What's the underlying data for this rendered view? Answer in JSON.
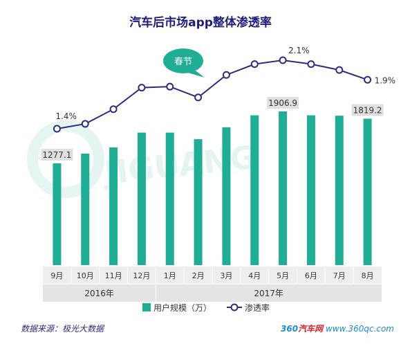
{
  "title": "汽车后市场app整体渗透率",
  "chart_data": {
    "type": "bar+line",
    "categories": [
      "9月",
      "10月",
      "11月",
      "12月",
      "1月",
      "2月",
      "3月",
      "4月",
      "5月",
      "6月",
      "7月",
      "8月"
    ],
    "year_groups": [
      {
        "label": "2016年",
        "start": 0,
        "end": 3
      },
      {
        "label": "2017年",
        "start": 4,
        "end": 11
      }
    ],
    "series": [
      {
        "name": "用户规模（万）",
        "type": "bar",
        "color": "#1fad96",
        "values": [
          1277.1,
          1395,
          1470,
          1650,
          1650,
          1570,
          1715,
          1860,
          1906.9,
          1860,
          1855,
          1819.2
        ],
        "labels": [
          {
            "index": 0,
            "text": "1277.1"
          },
          {
            "index": 8,
            "text": "1906.9"
          },
          {
            "index": 11,
            "text": "1819.2"
          }
        ]
      },
      {
        "name": "渗透率",
        "type": "line",
        "color": "#2e2a80",
        "values": [
          1.4,
          1.45,
          1.6,
          1.82,
          1.83,
          1.72,
          1.95,
          2.06,
          2.1,
          2.06,
          2.0,
          1.9
        ],
        "labels": [
          {
            "index": 0,
            "text": "1.4%"
          },
          {
            "index": 8,
            "text": "2.1%"
          },
          {
            "index": 11,
            "text": "1.9%"
          }
        ]
      }
    ],
    "annotation": "春节",
    "legend": {
      "position": "bottom"
    }
  },
  "footer": {
    "source": "数据来源：极光大数据",
    "logo_part1": "360",
    "logo_part2": "汽车网",
    "logo_part3": " www.360qc.com"
  }
}
